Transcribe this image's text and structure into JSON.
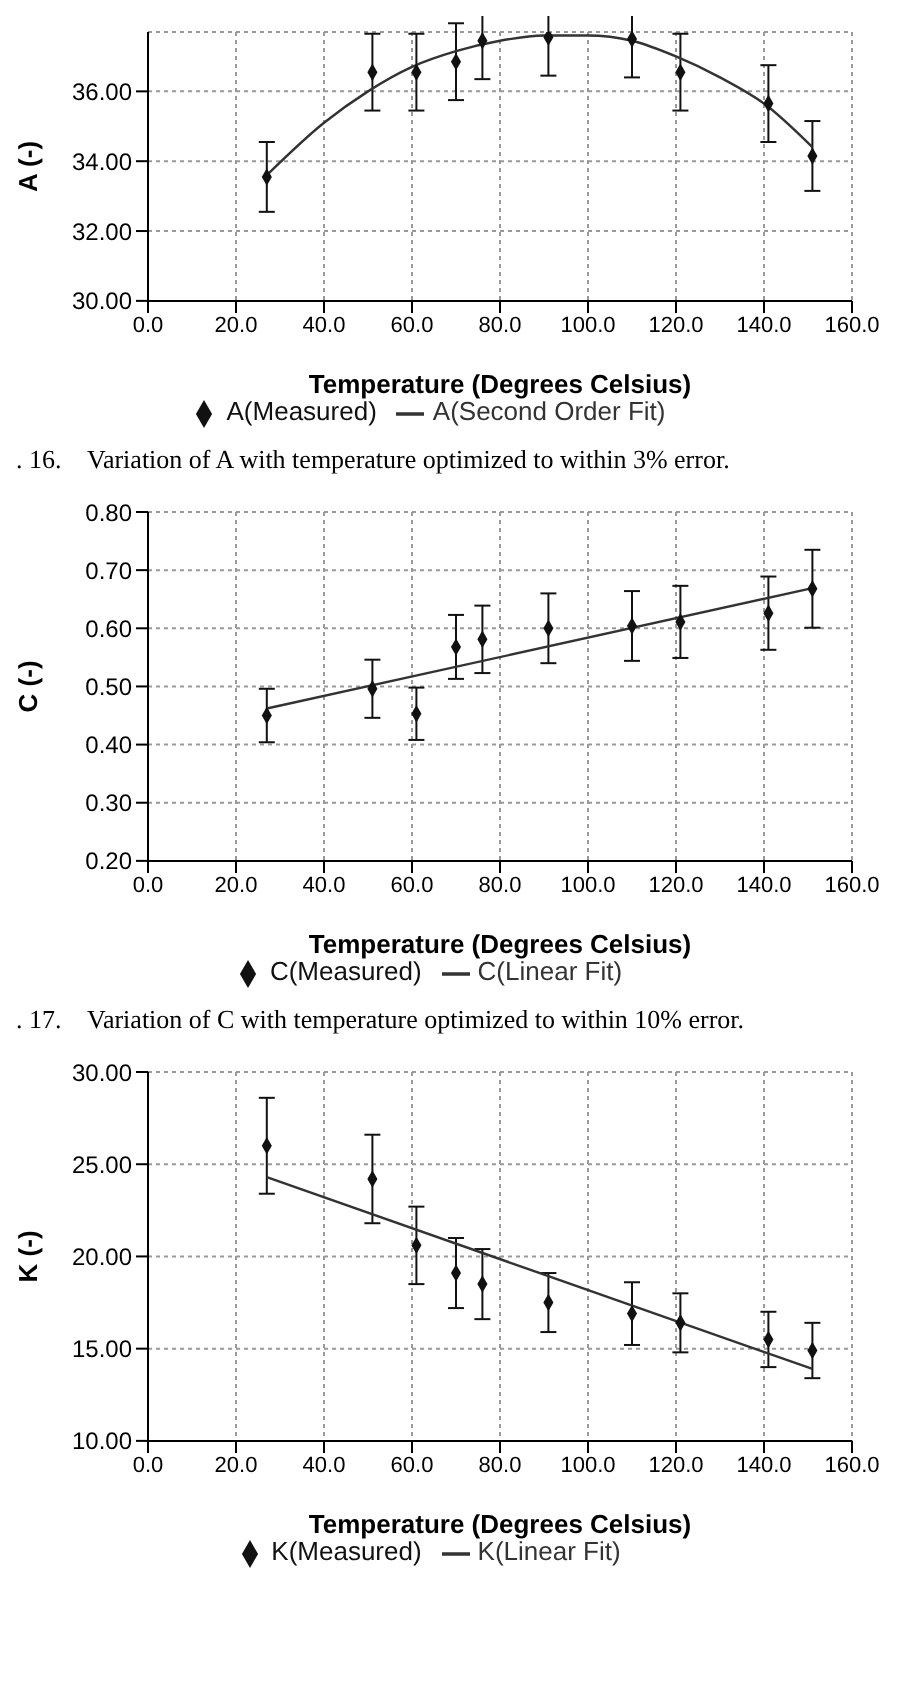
{
  "chart_data": [
    {
      "type": "scatter",
      "xlabel": "Temperature (Degrees Celsius)",
      "ylabel": "A (-)",
      "xlim": [
        0,
        160
      ],
      "xticks": [
        {
          "value": 0,
          "label": "0.0"
        },
        {
          "value": 20,
          "label": "20.0"
        },
        {
          "value": 40,
          "label": "40.0"
        },
        {
          "value": 60,
          "label": "60.0"
        },
        {
          "value": 80,
          "label": "80.0"
        },
        {
          "value": 100,
          "label": "100.0"
        },
        {
          "value": 120,
          "label": "120.0"
        },
        {
          "value": 140,
          "label": "140.0"
        },
        {
          "value": 160,
          "label": "160.0"
        }
      ],
      "ylim": [
        30,
        37.7
      ],
      "yticks": [
        {
          "value": 30,
          "label": "30.00"
        },
        {
          "value": 32,
          "label": "32.00"
        },
        {
          "value": 34,
          "label": "34.00"
        },
        {
          "value": 36,
          "label": "36.00"
        }
      ],
      "grid": true,
      "legend": "bottom",
      "line_style": "solid",
      "annotations": [
        ". 16.    Variation of A with temperature optimized to within 3% error."
      ],
      "series": [
        {
          "marker": "diamond",
          "name": "A(Measured)",
          "color": "#111111",
          "x": [
            27,
            51,
            61,
            70,
            76,
            91,
            110,
            121,
            141,
            151
          ],
          "values": [
            33.55,
            36.55,
            36.55,
            36.85,
            37.45,
            37.55,
            37.5,
            36.55,
            35.65,
            34.15
          ],
          "errors": [
            1.0,
            1.1,
            1.1,
            1.1,
            1.1,
            1.1,
            1.1,
            1.1,
            1.1,
            1.0
          ]
        },
        {
          "type": "line",
          "marker": "none",
          "name": "A(Second Order Fit)",
          "color": "#333333",
          "x": [
            27,
            40,
            50,
            60,
            70,
            80,
            90,
            100,
            110,
            120,
            130,
            140,
            151
          ],
          "values": [
            33.6,
            35.1,
            36.0,
            36.7,
            37.15,
            37.45,
            37.6,
            37.6,
            37.45,
            37.0,
            36.4,
            35.65,
            34.4
          ]
        }
      ]
    },
    {
      "type": "scatter",
      "xlabel": "Temperature (Degrees Celsius)",
      "ylabel": "C (-)",
      "xlim": [
        0,
        160
      ],
      "xticks": [
        {
          "value": 0,
          "label": "0.0"
        },
        {
          "value": 20,
          "label": "20.0"
        },
        {
          "value": 40,
          "label": "40.0"
        },
        {
          "value": 60,
          "label": "60.0"
        },
        {
          "value": 80,
          "label": "80.0"
        },
        {
          "value": 100,
          "label": "100.0"
        },
        {
          "value": 120,
          "label": "120.0"
        },
        {
          "value": 140,
          "label": "140.0"
        },
        {
          "value": 160,
          "label": "160.0"
        }
      ],
      "ylim": [
        0.2,
        0.8
      ],
      "yticks": [
        {
          "value": 0.2,
          "label": "0.20"
        },
        {
          "value": 0.3,
          "label": "0.30"
        },
        {
          "value": 0.4,
          "label": "0.40"
        },
        {
          "value": 0.5,
          "label": "0.50"
        },
        {
          "value": 0.6,
          "label": "0.60"
        },
        {
          "value": 0.7,
          "label": "0.70"
        },
        {
          "value": 0.8,
          "label": "0.80"
        }
      ],
      "grid": true,
      "legend": "bottom",
      "line_style": "solid",
      "annotations": [
        ". 17.    Variation of C with temperature optimized to within 10% error."
      ],
      "series": [
        {
          "marker": "diamond",
          "name": "C(Measured)",
          "color": "#111111",
          "x": [
            27,
            51,
            61,
            70,
            76,
            91,
            110,
            121,
            141,
            151
          ],
          "values": [
            0.45,
            0.496,
            0.453,
            0.568,
            0.581,
            0.6,
            0.604,
            0.611,
            0.626,
            0.668
          ],
          "errors": [
            0.046,
            0.05,
            0.045,
            0.055,
            0.058,
            0.06,
            0.06,
            0.062,
            0.063,
            0.067
          ]
        },
        {
          "type": "line",
          "marker": "none",
          "name": "C(Linear Fit)",
          "color": "#333333",
          "x": [
            27,
            151
          ],
          "values": [
            0.462,
            0.669
          ]
        }
      ]
    },
    {
      "type": "scatter",
      "xlabel": "Temperature (Degrees Celsius)",
      "ylabel": "K (-)",
      "xlim": [
        0,
        160
      ],
      "xticks": [
        {
          "value": 0,
          "label": "0.0"
        },
        {
          "value": 20,
          "label": "20.0"
        },
        {
          "value": 40,
          "label": "40.0"
        },
        {
          "value": 60,
          "label": "60.0"
        },
        {
          "value": 80,
          "label": "80.0"
        },
        {
          "value": 100,
          "label": "100.0"
        },
        {
          "value": 120,
          "label": "120.0"
        },
        {
          "value": 140,
          "label": "140.0"
        },
        {
          "value": 160,
          "label": "160.0"
        }
      ],
      "ylim": [
        10,
        30
      ],
      "yticks": [
        {
          "value": 10,
          "label": "10.00"
        },
        {
          "value": 15,
          "label": "15.00"
        },
        {
          "value": 20,
          "label": "20.00"
        },
        {
          "value": 25,
          "label": "25.00"
        },
        {
          "value": 30,
          "label": "30.00"
        }
      ],
      "grid": true,
      "legend": "bottom",
      "line_style": "solid",
      "series": [
        {
          "marker": "diamond",
          "name": "K(Measured)",
          "color": "#111111",
          "x": [
            27,
            51,
            61,
            70,
            76,
            91,
            110,
            121,
            141,
            151
          ],
          "values": [
            26.0,
            24.2,
            20.6,
            19.1,
            18.5,
            17.5,
            16.9,
            16.4,
            15.5,
            14.9
          ],
          "errors": [
            2.6,
            2.4,
            2.1,
            1.9,
            1.9,
            1.6,
            1.7,
            1.6,
            1.5,
            1.5
          ]
        },
        {
          "type": "line",
          "marker": "none",
          "name": "K(Linear Fit)",
          "color": "#333333",
          "x": [
            27,
            151
          ],
          "values": [
            24.3,
            13.9
          ]
        }
      ]
    }
  ]
}
